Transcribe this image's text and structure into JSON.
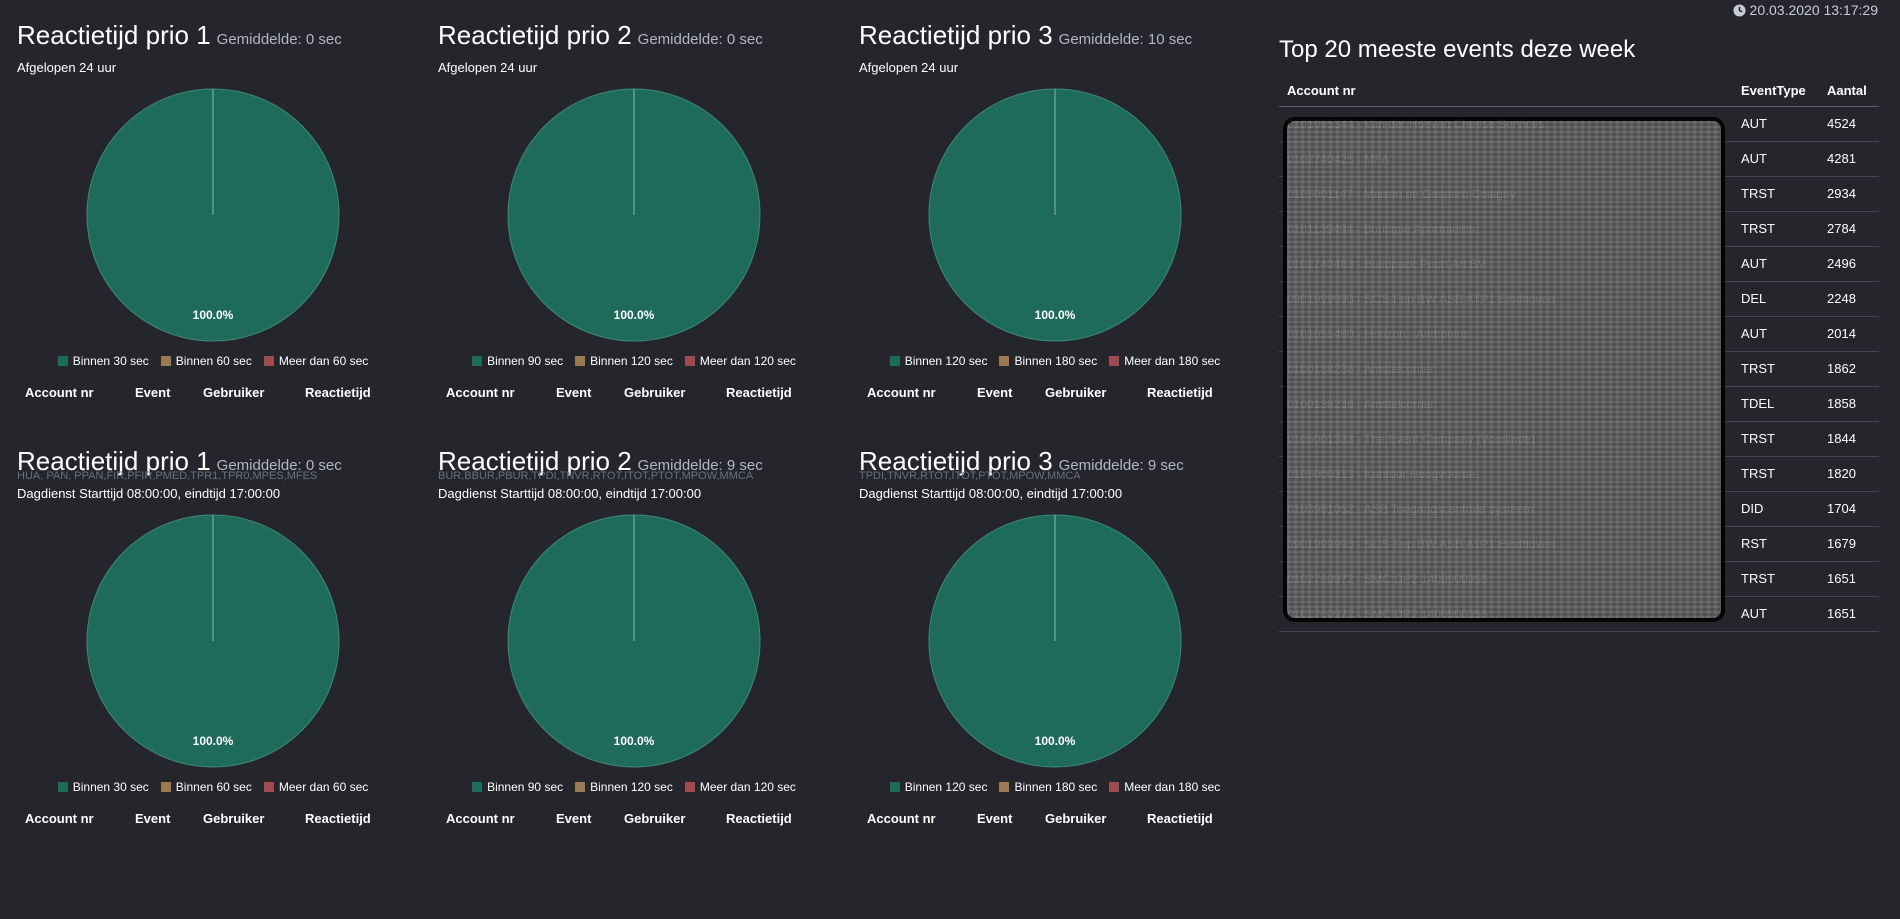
{
  "clock": {
    "icon": "clock-icon",
    "text": "20.03.2020 13:17:29"
  },
  "colors": {
    "within": "#1e6b5c",
    "middle": "#9b7a52",
    "over": "#a14a52"
  },
  "panels": [
    {
      "title": "Reactietijd prio 1",
      "avg": "Gemiddelde: 0 sec",
      "sub": "Afgelopen 24 uur",
      "codes": "",
      "pct": "100.0%",
      "legend": [
        "Binnen 30 sec",
        "Binnen 60 sec",
        "Meer dan 60 sec"
      ]
    },
    {
      "title": "Reactietijd prio 2",
      "avg": "Gemiddelde: 0 sec",
      "sub": "Afgelopen 24 uur",
      "codes": "",
      "pct": "100.0%",
      "legend": [
        "Binnen 90 sec",
        "Binnen 120 sec",
        "Meer dan 120 sec"
      ]
    },
    {
      "title": "Reactietijd prio 3",
      "avg": "Gemiddelde: 10 sec",
      "sub": "Afgelopen 24 uur",
      "codes": "",
      "pct": "100.0%",
      "legend": [
        "Binnen 120 sec",
        "Binnen 180 sec",
        "Meer dan 180 sec"
      ]
    },
    {
      "title": "Reactietijd prio 1",
      "avg": "Gemiddelde: 0 sec",
      "sub": "Dagdienst Starttijd 08:00:00, eindtijd 17:00:00",
      "codes": "HUA, PAN, PPAN,FIR,PFIR,PMED,TPR1,TPR0,MPES,MFES",
      "pct": "100.0%",
      "legend": [
        "Binnen 30 sec",
        "Binnen 60 sec",
        "Meer dan 60 sec"
      ]
    },
    {
      "title": "Reactietijd prio 2",
      "avg": "Gemiddelde: 9 sec",
      "sub": "Dagdienst Starttijd 08:00:00, eindtijd 17:00:00",
      "codes": "BUR,BBUR,PBUR,TPDI,TNVR,RTOT,ITOT,PTOT,MPOW,MMCA",
      "pct": "100.0%",
      "legend": [
        "Binnen 90 sec",
        "Binnen 120 sec",
        "Meer dan 120 sec"
      ]
    },
    {
      "title": "Reactietijd prio 3",
      "avg": "Gemiddelde: 9 sec",
      "sub": "Dagdienst Starttijd 08:00:00, eindtijd 17:00:00",
      "codes": "TPDI,TNVR,RTOT,ITOT,PTOT,MPOW,MMCA",
      "pct": "100.0%",
      "legend": [
        "Binnen 120 sec",
        "Binnen 180 sec",
        "Meer dan 180 sec"
      ]
    }
  ],
  "columns": {
    "account": "Account nr",
    "event": "Event",
    "user": "Gebruiker",
    "time": "Reactietijd"
  },
  "top20": {
    "title": "Top 20 meeste events deze week",
    "headers": {
      "account": "Account nr",
      "type": "EventType",
      "count": "Aantal"
    },
    "rows": [
      {
        "account": "0101095344 - Van der Hoeven Cheese Services",
        "type": "AUT",
        "count": "4524"
      },
      {
        "account": "0102740425 - MFA",
        "type": "AUT",
        "count": "4281"
      },
      {
        "account": "0105001147 - Maison de Gaspard Cologny",
        "type": "TRST",
        "count": "2934"
      },
      {
        "account": "0101139494 - Boutique Apartments",
        "type": "TRST",
        "count": "2784"
      },
      {
        "account": "0102740463 - Buildpack Poort Art BV",
        "type": "AUT",
        "count": "2496"
      },
      {
        "account": "0901999993 - SCS-Fep BW ASB ATP1 Eindhoven",
        "type": "DEL",
        "count": "2248"
      },
      {
        "account": "0101055460 - Horizon - Anthonius",
        "type": "AUT",
        "count": "2014"
      },
      {
        "account": "0100138236 - Amstelcorner",
        "type": "TRST",
        "count": "1862"
      },
      {
        "account": "0100138236 - Amstelcorner",
        "type": "TDEL",
        "count": "1858"
      },
      {
        "account": "0105001333 - The Event Company (Voorlinde)",
        "type": "TRST",
        "count": "1844"
      },
      {
        "account": "0105000313 - Kantoor Hoogvoorde",
        "type": "TRST",
        "count": "1820"
      },
      {
        "account": "0103991052 - ASB Toegangscentrale systeem",
        "type": "DID",
        "count": "1704"
      },
      {
        "account": "0901999993 - SCS-Fep BW ASB ATP1 Eindhoven",
        "type": "RST",
        "count": "1679"
      },
      {
        "account": "0102760972 - SMC DP2 1409900356",
        "type": "TRST",
        "count": "1651"
      },
      {
        "account": "0102760972 - SMC DP2 1409900356",
        "type": "AUT",
        "count": "1651"
      }
    ]
  },
  "chart_data": [
    {
      "type": "pie",
      "title": "Reactietijd prio 1",
      "labels": [
        "Binnen 30 sec",
        "Binnen 60 sec",
        "Meer dan 60 sec"
      ],
      "values": [
        100,
        0,
        0
      ]
    },
    {
      "type": "pie",
      "title": "Reactietijd prio 2",
      "labels": [
        "Binnen 90 sec",
        "Binnen 120 sec",
        "Meer dan 120 sec"
      ],
      "values": [
        100,
        0,
        0
      ]
    },
    {
      "type": "pie",
      "title": "Reactietijd prio 3",
      "labels": [
        "Binnen 120 sec",
        "Binnen 180 sec",
        "Meer dan 180 sec"
      ],
      "values": [
        100,
        0,
        0
      ]
    },
    {
      "type": "pie",
      "title": "Reactietijd prio 1",
      "labels": [
        "Binnen 30 sec",
        "Binnen 60 sec",
        "Meer dan 60 sec"
      ],
      "values": [
        100,
        0,
        0
      ]
    },
    {
      "type": "pie",
      "title": "Reactietijd prio 2",
      "labels": [
        "Binnen 90 sec",
        "Binnen 120 sec",
        "Meer dan 120 sec"
      ],
      "values": [
        100,
        0,
        0
      ]
    },
    {
      "type": "pie",
      "title": "Reactietijd prio 3",
      "labels": [
        "Binnen 120 sec",
        "Binnen 180 sec",
        "Meer dan 180 sec"
      ],
      "values": [
        100,
        0,
        0
      ]
    }
  ]
}
